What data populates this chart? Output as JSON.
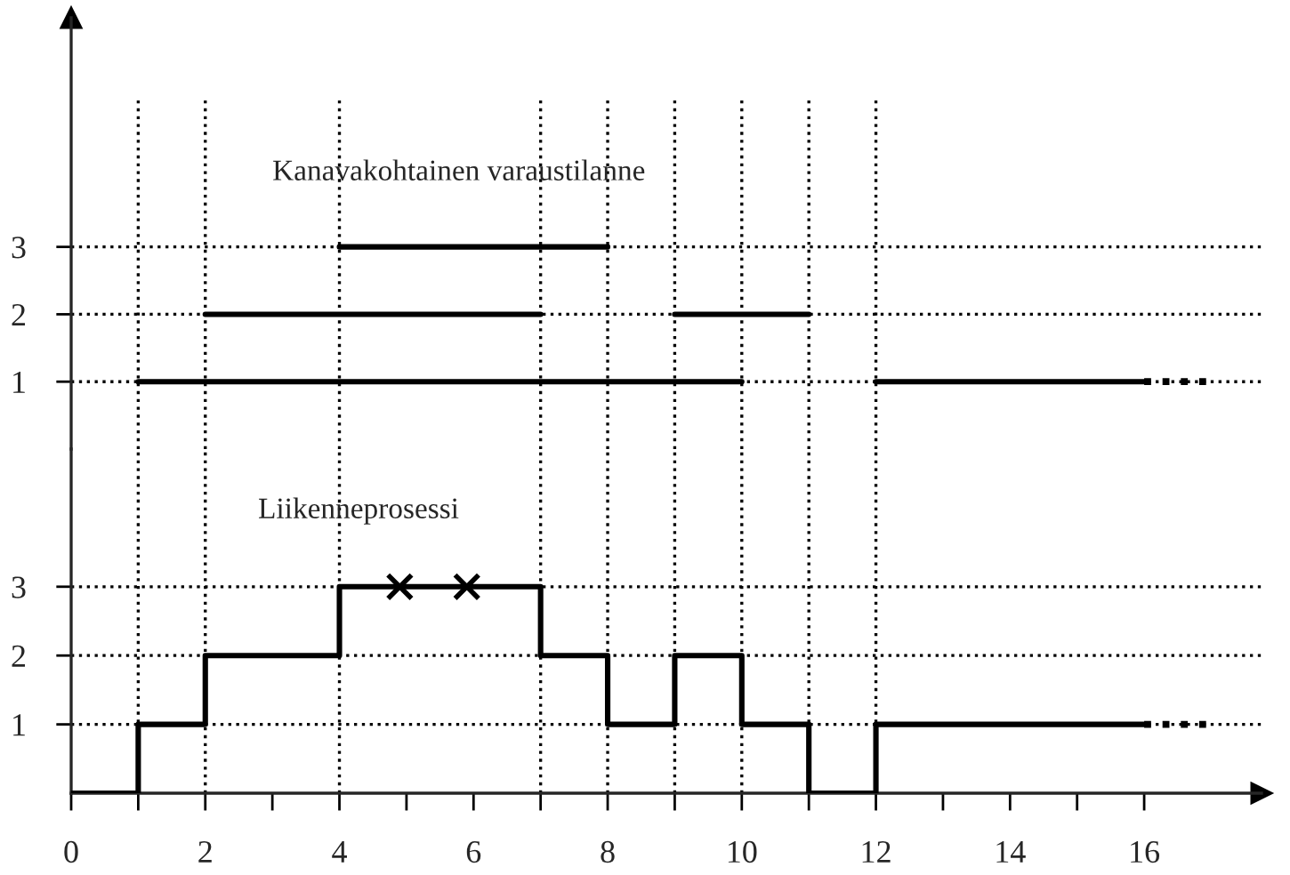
{
  "chart_data": [
    {
      "type": "line",
      "annotations": [
        "Kanavakohtainen varaustilanne"
      ],
      "xlim": [
        0,
        17.75
      ],
      "ylim": [
        0,
        6.4
      ],
      "yticks": [
        1,
        2,
        3
      ],
      "tick_labels": "y",
      "grid": "y",
      "line_style": "solid",
      "marker": "none",
      "ref_lines": [
        {
          "axis": "x",
          "value": 1,
          "color": "#000000",
          "line_style": "dotted"
        },
        {
          "axis": "x",
          "value": 2,
          "color": "#000000",
          "line_style": "dotted"
        },
        {
          "axis": "x",
          "value": 4,
          "color": "#000000",
          "line_style": "dotted"
        },
        {
          "axis": "x",
          "value": 7,
          "color": "#000000",
          "line_style": "dotted"
        },
        {
          "axis": "x",
          "value": 8,
          "color": "#000000",
          "line_style": "dotted"
        },
        {
          "axis": "x",
          "value": 9,
          "color": "#000000",
          "line_style": "dotted"
        },
        {
          "axis": "x",
          "value": 10,
          "color": "#000000",
          "line_style": "dotted"
        },
        {
          "axis": "x",
          "value": 11,
          "color": "#000000",
          "line_style": "dotted"
        },
        {
          "axis": "x",
          "value": 12,
          "color": "#000000",
          "line_style": "dotted"
        }
      ],
      "series": [
        {
          "color": "#000000",
          "x": [
            1,
            10,
            11,
            12,
            16
          ],
          "values": [
            1,
            1,
            null,
            1,
            1
          ]
        },
        {
          "color": "#000000",
          "x": [
            16,
            17
          ],
          "values": [
            1,
            1
          ],
          "line_style": "dotted"
        },
        {
          "color": "#000000",
          "x": [
            2,
            7,
            8,
            9,
            11
          ],
          "values": [
            2,
            2,
            null,
            2,
            2
          ]
        },
        {
          "color": "#000000",
          "x": [
            4,
            8
          ],
          "values": [
            3,
            3
          ]
        }
      ]
    },
    {
      "type": "step",
      "annotations": [
        "Liikenneprosessi"
      ],
      "xlim": [
        0,
        17.75
      ],
      "ylim": [
        0,
        5
      ],
      "yticks": [
        1,
        2,
        3
      ],
      "xticks": [
        0,
        {
          "value": 1,
          "label": null
        },
        2,
        {
          "value": 3,
          "label": null
        },
        4,
        {
          "value": 5,
          "label": null
        },
        6,
        {
          "value": 7,
          "label": null
        },
        8,
        {
          "value": 9,
          "label": null
        },
        10,
        {
          "value": 11,
          "label": null
        },
        12,
        {
          "value": 13,
          "label": null
        },
        14,
        {
          "value": 15,
          "label": null
        },
        16
      ],
      "grid": "y",
      "line_style": "solid",
      "ref_lines": [
        {
          "axis": "x",
          "value": 1,
          "color": "#000000",
          "line_style": "dotted"
        },
        {
          "axis": "x",
          "value": 2,
          "color": "#000000",
          "line_style": "dotted"
        },
        {
          "axis": "x",
          "value": 4,
          "color": "#000000",
          "line_style": "dotted"
        },
        {
          "axis": "x",
          "value": 7,
          "color": "#000000",
          "line_style": "dotted"
        },
        {
          "axis": "x",
          "value": 8,
          "color": "#000000",
          "line_style": "dotted"
        },
        {
          "axis": "x",
          "value": 9,
          "color": "#000000",
          "line_style": "dotted"
        },
        {
          "axis": "x",
          "value": 10,
          "color": "#000000",
          "line_style": "dotted"
        },
        {
          "axis": "x",
          "value": 11,
          "color": "#000000",
          "line_style": "dotted"
        },
        {
          "axis": "x",
          "value": 12,
          "color": "#000000",
          "line_style": "dotted"
        }
      ],
      "series": [
        {
          "color": "#000000",
          "x": [
            0,
            1,
            2,
            4,
            7,
            8,
            9,
            10,
            11,
            12,
            16
          ],
          "values": [
            0,
            1,
            2,
            3,
            2,
            1,
            2,
            1,
            0,
            1,
            1
          ]
        },
        {
          "type": "line",
          "color": "#000000",
          "x": [
            16,
            17
          ],
          "values": [
            1,
            1
          ],
          "line_style": "dotted"
        },
        {
          "type": "scatter",
          "color": "#000000",
          "x": [
            4.9,
            5.9
          ],
          "values": [
            3,
            3
          ],
          "marker": "cross"
        }
      ]
    }
  ]
}
